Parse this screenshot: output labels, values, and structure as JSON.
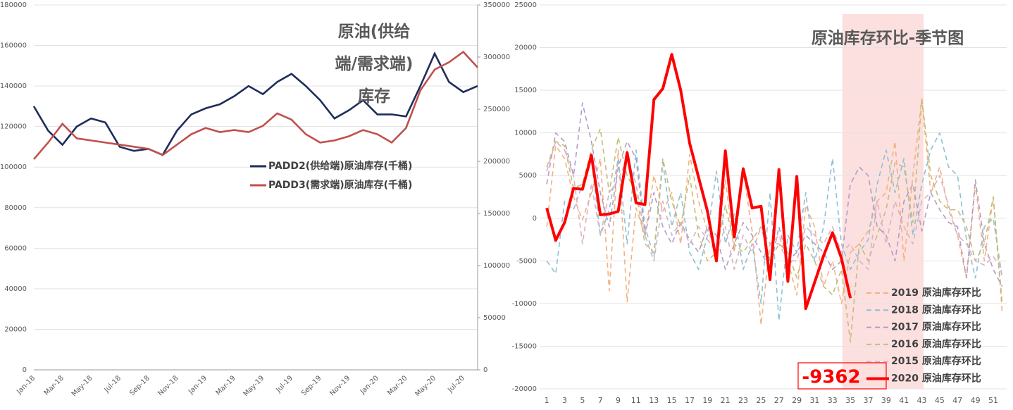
{
  "chart_data": [
    {
      "type": "line",
      "title": "原油(供给端/需求端)库存",
      "categories": [
        "Jan-18",
        null,
        "Mar-18",
        null,
        "May-18",
        null,
        "Jul-18",
        null,
        "Sep-18",
        null,
        "Nov-18",
        null,
        "Jan-19",
        null,
        "Mar-19",
        null,
        "May-19",
        null,
        "Jul-19",
        null,
        "Sep-19",
        null,
        "Nov-19",
        null,
        "Jan-20",
        null,
        "Mar-20",
        null,
        "May-20",
        null,
        "Jul-20",
        null
      ],
      "series": [
        {
          "name": "PADD2(供给端)原油库存(千桶)",
          "color": "#1f2d5c",
          "axis": "y",
          "values": [
            130000,
            118000,
            111000,
            120000,
            124000,
            122000,
            110000,
            108000,
            109000,
            106000,
            118000,
            126000,
            129000,
            131000,
            135000,
            140000,
            136000,
            142000,
            146000,
            140000,
            133000,
            124000,
            128000,
            133000,
            126000,
            126000,
            125000,
            140000,
            156000,
            142000,
            137000,
            140000
          ]
        },
        {
          "name": "PADD3(需求端)原油库存(千桶)",
          "color": "#c0504d",
          "axis": "y2",
          "values": [
            202000,
            218000,
            236000,
            222000,
            220000,
            218000,
            216000,
            214000,
            212000,
            206000,
            216000,
            226000,
            232000,
            228000,
            230000,
            228000,
            234000,
            246000,
            240000,
            226000,
            218000,
            220000,
            224000,
            230000,
            226000,
            218000,
            232000,
            268000,
            288000,
            295000,
            305000,
            290000
          ]
        }
      ],
      "ylim": [
        0,
        180000
      ],
      "yticks": [
        0,
        20000,
        40000,
        60000,
        80000,
        100000,
        120000,
        140000,
        160000,
        180000
      ],
      "y2lim": [
        0,
        350000
      ],
      "y2ticks": [
        0,
        50000,
        100000,
        150000,
        200000,
        250000,
        300000,
        350000
      ],
      "grid": true,
      "legend": "center"
    },
    {
      "type": "line",
      "title": "原油库存环比-季节图",
      "x": [
        1,
        2,
        3,
        4,
        5,
        6,
        7,
        8,
        9,
        10,
        11,
        12,
        13,
        14,
        15,
        16,
        17,
        18,
        19,
        20,
        21,
        22,
        23,
        24,
        25,
        26,
        27,
        28,
        29,
        30,
        31,
        32,
        33,
        34,
        35,
        36,
        37,
        38,
        39,
        40,
        41,
        42,
        43,
        44,
        45,
        46,
        47,
        48,
        49,
        50,
        51,
        52
      ],
      "xlim": [
        0.2,
        52.5
      ],
      "xticks": [
        1,
        3,
        5,
        7,
        9,
        11,
        13,
        15,
        17,
        19,
        21,
        23,
        25,
        27,
        29,
        31,
        33,
        35,
        37,
        39,
        41,
        43,
        45,
        47,
        49,
        51
      ],
      "ylim": [
        -20000,
        25000
      ],
      "yticks": [
        -20000,
        -15000,
        -10000,
        -5000,
        0,
        5000,
        10000,
        15000,
        20000,
        25000
      ],
      "grid": true,
      "legend": "lower right",
      "highlight_xlim": [
        34.1,
        43.2
      ],
      "annotation": "-9362",
      "series": [
        {
          "name": "2019 原油库存环比",
          "color": "#f4b183",
          "dashed": true,
          "values": [
            -1000,
            8500,
            7000,
            2500,
            -200,
            3000,
            7000,
            -8500,
            8000,
            -9800,
            1200,
            -2000,
            5000,
            800,
            3000,
            -3000,
            7500,
            2000,
            -1500,
            -3500,
            4500,
            -4000,
            5500,
            -1500,
            -12500,
            -3000,
            -2000,
            -5000,
            -9000,
            1500,
            -1000,
            -8000,
            -5000,
            -10000,
            -4000,
            -3000,
            -1500,
            2000,
            3000,
            9000,
            -5000,
            5000,
            14000,
            3000,
            6000,
            1000,
            -2000,
            -7000,
            4000,
            -5000,
            2500,
            -11000
          ]
        },
        {
          "name": "2018 原油库存环比",
          "color": "#8fc1d4",
          "dashed": true,
          "values": [
            -5000,
            -6500,
            2000,
            1000,
            4000,
            7000,
            -2000,
            1000,
            7000,
            -3000,
            8000,
            -1000,
            -4500,
            6500,
            -1000,
            3000,
            -4000,
            -6000,
            -2000,
            5500,
            -3000,
            500,
            -6000,
            -3000,
            -10000,
            3000,
            -12000,
            -2000,
            -4000,
            3000,
            -5000,
            -1000,
            7000,
            -3000,
            -6000,
            -4000,
            -2500,
            4000,
            8000,
            3000,
            7000,
            -2000,
            4000,
            8000,
            10000,
            6000,
            5000,
            -2500,
            -7000,
            -1000,
            0,
            -7000
          ]
        },
        {
          "name": "2017 原油库存环比",
          "color": "#b39bc8",
          "dashed": true,
          "values": [
            4000,
            10000,
            9000,
            5000,
            13500,
            9000,
            3000,
            -1000,
            6000,
            9000,
            7000,
            -2000,
            3000,
            -1000,
            -3000,
            -500,
            -2500,
            -4000,
            -1000,
            -2000,
            -6000,
            -3000,
            -500,
            -2000,
            -4000,
            -6000,
            -1000,
            -5000,
            -4000,
            -2000,
            -3000,
            -4000,
            -6000,
            -5000,
            4000,
            6000,
            5000,
            -1000,
            -2000,
            -5000,
            2000,
            4000,
            -1500,
            3000,
            1000,
            -500,
            -1000,
            -7000,
            4500,
            -3000,
            -6000,
            -8000
          ]
        },
        {
          "name": "2016 原油库存环比",
          "color": "#c4bd7a",
          "dashed": true,
          "values": [
            6000,
            9000,
            8500,
            3500,
            4000,
            8000,
            10500,
            3000,
            9500,
            5000,
            3000,
            -3000,
            -4000,
            7000,
            2000,
            -1000,
            5000,
            -2000,
            -5000,
            -4000,
            1500,
            -3000,
            -4000,
            -2500,
            -1000,
            -5000,
            -3000,
            -4000,
            -7000,
            -3000,
            -5000,
            -8000,
            -9000,
            -6000,
            -14500,
            -3000,
            -5000,
            -2000,
            1000,
            6500,
            6000,
            -500,
            14000,
            5000,
            2000,
            1000,
            1000,
            -1000,
            -5000,
            -3000,
            2500,
            -10000
          ]
        },
        {
          "name": "2015 原油库存环比",
          "color": "#d9b3c3",
          "dashed": true,
          "values": [
            5500,
            9000,
            8000,
            5000,
            -3000,
            4000,
            -2000,
            3000,
            4500,
            7000,
            4000,
            -2000,
            -5000,
            2000,
            -2000,
            -500,
            -3000,
            -1000,
            -2500,
            -4000,
            -1000,
            -6000,
            -2000,
            -4000,
            -1000,
            -3000,
            -3000,
            -5000,
            -5000,
            -1000,
            -2000,
            -3000,
            -1000,
            -4000,
            -3000,
            -5000,
            -6000,
            2000,
            -3000,
            2000,
            -1000,
            -3000,
            2000,
            3000,
            5000,
            1500,
            -2000,
            -3000,
            -5000,
            -5500,
            -4500,
            -6000
          ]
        },
        {
          "name": "2020 原油库存环比",
          "color": "#ff0000",
          "dashed": false,
          "values": [
            1200,
            -2600,
            -500,
            3500,
            3400,
            7400,
            400,
            500,
            800,
            7700,
            1800,
            1600,
            13900,
            15200,
            19200,
            15000,
            8800,
            4800,
            800,
            -5000,
            7900,
            -2200,
            5800,
            1200,
            1400,
            -7200,
            5700,
            -7400,
            4900,
            -10600,
            -7500,
            -4400,
            -1700,
            -4700,
            -9362,
            null,
            null,
            null,
            null,
            null,
            null,
            null,
            null,
            null,
            null,
            null,
            null,
            null,
            null,
            null,
            null,
            null
          ]
        }
      ]
    }
  ]
}
